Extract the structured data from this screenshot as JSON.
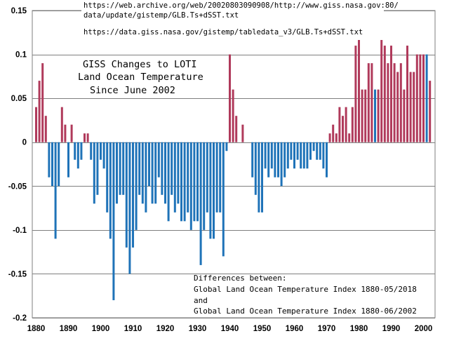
{
  "chart_data": {
    "type": "bar",
    "title_lines": [
      "GISS Changes to LOTI",
      "Land Ocean Temperature",
      "Since June 2002"
    ],
    "source_urls": [
      "https://web.archive.org/web/20020803090908/http://www.giss.nasa.gov:80/",
      "data/update/gistemp/GLB.Ts+dSST.txt",
      "https://data.giss.nasa.gov/gistemp/tabledata_v3/GLB.Ts+dSST.txt"
    ],
    "note_lines": [
      "Differences between:",
      "Global Land Ocean Temperature Index 1880-05/2018",
      "and",
      "Global Land Ocean Temperature Index 1880-06/2002"
    ],
    "xlabel": "",
    "ylabel": "",
    "xlim": [
      1880,
      2002
    ],
    "ylim": [
      -0.2,
      0.15
    ],
    "x_ticks": [
      "1880",
      "1890",
      "1900",
      "1910",
      "1920",
      "1930",
      "1940",
      "1950",
      "1960",
      "1970",
      "1980",
      "1990",
      "2000"
    ],
    "y_ticks": [
      "0.15",
      "0.1",
      "0.05",
      "0",
      "-0.05",
      "-0.1",
      "-0.15",
      "-0.2"
    ],
    "colors": {
      "positive": "#b03a5b",
      "negative": "#1f73b8",
      "highlight": "#1f73b8"
    },
    "highlight_years": [
      1985,
      2001
    ],
    "years": [
      1880,
      1881,
      1882,
      1883,
      1884,
      1885,
      1886,
      1887,
      1888,
      1889,
      1890,
      1891,
      1892,
      1893,
      1894,
      1895,
      1896,
      1897,
      1898,
      1899,
      1900,
      1901,
      1902,
      1903,
      1904,
      1905,
      1906,
      1907,
      1908,
      1909,
      1910,
      1911,
      1912,
      1913,
      1914,
      1915,
      1916,
      1917,
      1918,
      1919,
      1920,
      1921,
      1922,
      1923,
      1924,
      1925,
      1926,
      1927,
      1928,
      1929,
      1930,
      1931,
      1932,
      1933,
      1934,
      1935,
      1936,
      1937,
      1938,
      1939,
      1940,
      1941,
      1942,
      1943,
      1944,
      1945,
      1946,
      1947,
      1948,
      1949,
      1950,
      1951,
      1952,
      1953,
      1954,
      1955,
      1956,
      1957,
      1958,
      1959,
      1960,
      1961,
      1962,
      1963,
      1964,
      1965,
      1966,
      1967,
      1968,
      1969,
      1970,
      1971,
      1972,
      1973,
      1974,
      1975,
      1976,
      1977,
      1978,
      1979,
      1980,
      1981,
      1982,
      1983,
      1984,
      1985,
      1986,
      1987,
      1988,
      1989,
      1990,
      1991,
      1992,
      1993,
      1994,
      1995,
      1996,
      1997,
      1998,
      1999,
      2000,
      2001,
      2002
    ],
    "values": [
      0.04,
      0.07,
      0.09,
      0.03,
      -0.04,
      -0.05,
      -0.11,
      -0.05,
      0.04,
      0.02,
      -0.04,
      0.02,
      -0.02,
      -0.03,
      -0.02,
      0.01,
      0.01,
      -0.02,
      -0.07,
      -0.06,
      -0.02,
      -0.03,
      -0.08,
      -0.11,
      -0.18,
      -0.07,
      -0.06,
      -0.06,
      -0.12,
      -0.15,
      -0.12,
      -0.1,
      -0.06,
      -0.07,
      -0.08,
      -0.05,
      -0.07,
      -0.07,
      -0.04,
      -0.06,
      -0.07,
      -0.09,
      -0.06,
      -0.08,
      -0.07,
      -0.09,
      -0.09,
      -0.08,
      -0.1,
      -0.09,
      -0.09,
      -0.14,
      -0.1,
      -0.08,
      -0.11,
      -0.11,
      -0.08,
      -0.08,
      -0.13,
      -0.01,
      0.1,
      0.06,
      0.03,
      0.0,
      0.02,
      0.0,
      0.0,
      -0.04,
      -0.06,
      -0.08,
      -0.08,
      -0.03,
      -0.04,
      -0.03,
      -0.04,
      -0.04,
      -0.05,
      -0.04,
      -0.03,
      -0.02,
      -0.03,
      -0.02,
      -0.03,
      -0.03,
      -0.03,
      -0.02,
      -0.01,
      -0.02,
      -0.02,
      -0.03,
      -0.04,
      0.01,
      0.02,
      0.01,
      0.04,
      0.03,
      0.04,
      0.01,
      0.04,
      0.11,
      0.12,
      0.06,
      0.06,
      0.09,
      0.09,
      0.06,
      0.06,
      0.12,
      0.11,
      0.09,
      0.11,
      0.09,
      0.08,
      0.09,
      0.06,
      0.11,
      0.08,
      0.08,
      0.1,
      0.1,
      0.1,
      0.1,
      0.07
    ]
  }
}
